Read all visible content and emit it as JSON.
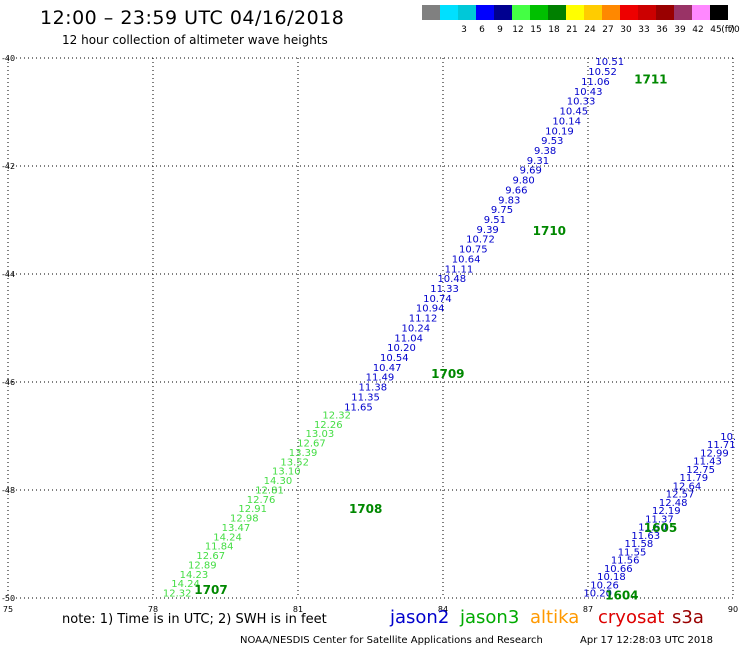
{
  "header": {
    "title": "12:00 – 23:59 UTC 04/16/2018",
    "subtitle": "12 hour collection of altimeter wave heights"
  },
  "legend": {
    "unit": "(ft)",
    "items": [
      {
        "label": "",
        "color": "#808080"
      },
      {
        "label": "3",
        "color": "#00e0ff"
      },
      {
        "label": "6",
        "color": "#00c8d8"
      },
      {
        "label": "9",
        "color": "#0000ff"
      },
      {
        "label": "12",
        "color": "#000090"
      },
      {
        "label": "15",
        "color": "#44ff44"
      },
      {
        "label": "18",
        "color": "#00c000"
      },
      {
        "label": "21",
        "color": "#008000"
      },
      {
        "label": "24",
        "color": "#ffff00"
      },
      {
        "label": "27",
        "color": "#ffcc00"
      },
      {
        "label": "30",
        "color": "#ff8800"
      },
      {
        "label": "33",
        "color": "#ee0000"
      },
      {
        "label": "36",
        "color": "#cc0000"
      },
      {
        "label": "39",
        "color": "#990000"
      },
      {
        "label": "42",
        "color": "#993366"
      },
      {
        "label": "45",
        "color": "#ff88ff"
      },
      {
        "label": "70",
        "color": "#000000"
      }
    ]
  },
  "map": {
    "lon_ticks": [
      "75",
      "78",
      "81",
      "84",
      "87",
      "90"
    ],
    "lat_ticks": [
      "-40",
      "-42",
      "-44",
      "-46",
      "-48",
      "-50"
    ],
    "lon_range": [
      75,
      90
    ],
    "lat_range": [
      -50,
      -40
    ]
  },
  "tracks": [
    {
      "pass": "1711",
      "pass_lon": 88.3,
      "pass_lat": -40.4,
      "color": "#0000cc",
      "values": [
        "10.51",
        "10.52",
        "11.06",
        "10.43",
        "10.33",
        "10.45",
        "10.14",
        "10.19",
        "9.53",
        "9.38",
        "9.31",
        "9.69",
        "9.80",
        "9.66",
        "9.83",
        "9.75",
        "9.51",
        "9.39",
        "10.72",
        "10.75",
        "10.64",
        "11.11",
        "10.48",
        "11.33",
        "10.74",
        "10.94",
        "11.12",
        "10.24",
        "11.04",
        "10.20",
        "10.54",
        "10.47",
        "11.49",
        "11.38",
        "11.35",
        "11.65"
      ],
      "start_lon": 87.45,
      "start_lat": -40.06,
      "end_lon": 82.25,
      "end_lat": -46.45
    },
    {
      "pass": "1710",
      "pass_lon": 86.2,
      "pass_lat": -43.2
    },
    {
      "pass": "1709",
      "pass_lon": 84.1,
      "pass_lat": -45.85
    },
    {
      "pass": "1708",
      "pass_lon": 82.4,
      "pass_lat": -48.35,
      "color": "#44dd44",
      "values": [
        "12.32",
        "12.26",
        "13.03",
        "12.67",
        "13.39",
        "13.52",
        "13.10",
        "14.30",
        "12.81",
        "12.76",
        "12.91",
        "12.98",
        "13.47",
        "14.24",
        "11.84",
        "12.67",
        "12.89",
        "14.23",
        "14.24",
        "12.32"
      ],
      "start_lon": 81.8,
      "start_lat": -46.6,
      "end_lon": 78.5,
      "end_lat": -49.9
    },
    {
      "pass": "1707",
      "pass_lon": 79.2,
      "pass_lat": -49.85
    },
    {
      "pass": "1605",
      "pass_lon": 88.5,
      "pass_lat": -48.7,
      "color": "#0000cc",
      "values": [
        "10.20",
        "10.26",
        "10.18",
        "10.66",
        "11.56",
        "11.55",
        "11.58",
        "11.63",
        "11.50",
        "11.37",
        "12.19",
        "12.48",
        "12.57",
        "12.64",
        "11.79",
        "12.75",
        "11.43",
        "12.99",
        "11.71",
        "10."
      ],
      "start_lon": 87.2,
      "start_lat": -49.9,
      "end_lon": 89.9,
      "end_lat": -47.0
    },
    {
      "pass": "1604",
      "pass_lon": 87.7,
      "pass_lat": -49.95
    }
  ],
  "footer": {
    "note": "note: 1) Time is in UTC; 2) SWH is in feet",
    "satellites": [
      {
        "name": "jason2",
        "color": "#0000cc"
      },
      {
        "name": "jason3",
        "color": "#00aa00"
      },
      {
        "name": "altika",
        "color": "#ff9900"
      },
      {
        "name": "cryosat",
        "color": "#dd0000"
      },
      {
        "name": "s3a",
        "color": "#990000"
      }
    ],
    "credit": "NOAA/NESDIS Center for Satellite Applications and Research",
    "timestamp": "Apr 17 12:28:03 UTC 2018"
  }
}
